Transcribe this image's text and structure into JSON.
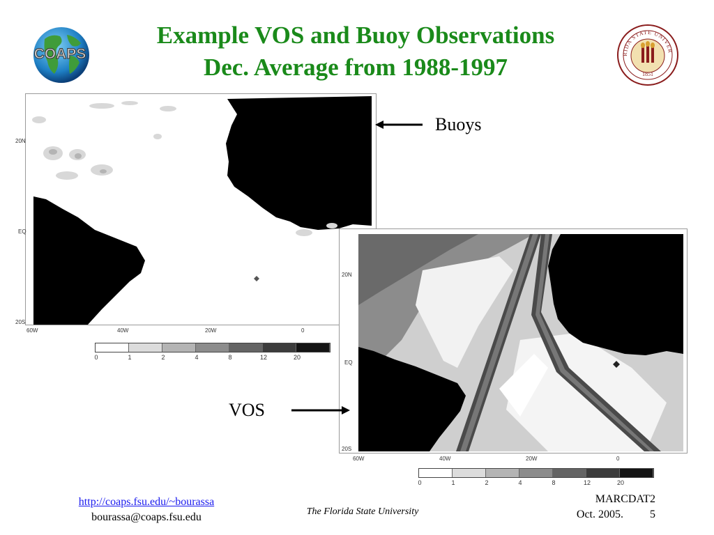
{
  "slide": {
    "title_line1": "Example VOS and Buoy Observations",
    "title_line2": "Dec. Average from 1988-1997",
    "logo_coaps_text": "COAPS",
    "seal_text": "FLORIDA STATE UNIVERSITY",
    "seal_year": "1851"
  },
  "maps": {
    "buoy": {
      "lat_labels": [
        "20N",
        "EQ",
        "20S"
      ],
      "lon_labels": [
        "60W",
        "40W",
        "20W",
        "0"
      ],
      "scale_labels": [
        "0",
        "1",
        "2",
        "4",
        "8",
        "12",
        "20"
      ]
    },
    "vos": {
      "lat_labels": [
        "20N",
        "EQ",
        "20S"
      ],
      "lon_labels": [
        "60W",
        "40W",
        "20W",
        "0"
      ],
      "scale_labels": [
        "0",
        "1",
        "2",
        "4",
        "8",
        "12",
        "20"
      ]
    }
  },
  "colors": {
    "title": "#1a8a1a",
    "scale": [
      "#ffffff",
      "#dcdcdc",
      "#b4b4b4",
      "#8c8c8c",
      "#646464",
      "#3c3c3c",
      "#141414"
    ]
  },
  "callouts": {
    "buoys": "Buoys",
    "vos": "VOS"
  },
  "footer": {
    "url": "http://coaps.fsu.edu/~bourassa",
    "email": "bourassa@coaps.fsu.edu",
    "university": "The Florida State University",
    "event": "MARCDAT2",
    "date": "Oct. 2005.",
    "page_number": "5"
  }
}
